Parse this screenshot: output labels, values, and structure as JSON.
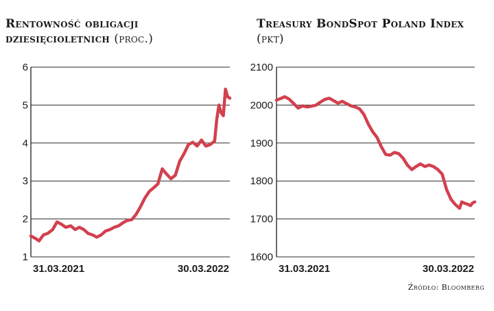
{
  "chart_data": [
    {
      "type": "line",
      "title": "Rentowność obligacji dziesięcioletnich",
      "unit": "(proc.)",
      "ylim": [
        1,
        6
      ],
      "yticks": [
        "1",
        "2",
        "3",
        "4",
        "5",
        "6"
      ],
      "grid": true,
      "x_tick_labels": [
        "31.03.2021",
        "30.03.2022"
      ],
      "color": "#d2414e",
      "series": [
        {
          "x": [
            "2021-03-31",
            "2021-04-09",
            "2021-04-15",
            "2021-04-23",
            "2021-05-01",
            "2021-05-10",
            "2021-05-18",
            "2021-05-26",
            "2021-06-03",
            "2021-06-12",
            "2021-06-20",
            "2021-06-28",
            "2021-07-06",
            "2021-07-14",
            "2021-07-22",
            "2021-07-30",
            "2021-08-07",
            "2021-08-15",
            "2021-08-23",
            "2021-08-31",
            "2021-09-08",
            "2021-09-16",
            "2021-09-24",
            "2021-10-02",
            "2021-10-10",
            "2021-10-18",
            "2021-10-26",
            "2021-11-03",
            "2021-11-11",
            "2021-11-19",
            "2021-11-27",
            "2021-12-05",
            "2021-12-13",
            "2021-12-21",
            "2021-12-29",
            "2022-01-06",
            "2022-01-14",
            "2022-01-22",
            "2022-01-30",
            "2022-02-07",
            "2022-02-15",
            "2022-02-23",
            "2022-03-03",
            "2022-03-07",
            "2022-03-11",
            "2022-03-15",
            "2022-03-19",
            "2022-03-23",
            "2022-03-27",
            "2022-03-31"
          ],
          "values": [
            1.55,
            1.48,
            1.42,
            1.58,
            1.62,
            1.72,
            1.92,
            1.86,
            1.78,
            1.82,
            1.72,
            1.78,
            1.72,
            1.62,
            1.58,
            1.52,
            1.58,
            1.68,
            1.72,
            1.78,
            1.82,
            1.9,
            1.96,
            1.98,
            2.12,
            2.32,
            2.55,
            2.72,
            2.82,
            2.92,
            3.32,
            3.18,
            3.06,
            3.15,
            3.52,
            3.72,
            3.96,
            4.02,
            3.92,
            4.08,
            3.92,
            3.96,
            4.05,
            4.62,
            5.0,
            4.8,
            4.72,
            5.42,
            5.22,
            5.18
          ]
        }
      ]
    },
    {
      "type": "line",
      "title": "Treasury BondSpot Poland Index",
      "unit": "(pkt)",
      "ylim": [
        1600,
        2100
      ],
      "yticks": [
        "1600",
        "1700",
        "1800",
        "1900",
        "2000",
        "2100"
      ],
      "grid": true,
      "x_tick_labels": [
        "31.03.2021",
        "30.03.2022"
      ],
      "color": "#d2414e",
      "series": [
        {
          "x": [
            "2021-03-31",
            "2021-04-09",
            "2021-04-15",
            "2021-04-23",
            "2021-05-01",
            "2021-05-10",
            "2021-05-18",
            "2021-05-26",
            "2021-06-03",
            "2021-06-12",
            "2021-06-20",
            "2021-06-28",
            "2021-07-06",
            "2021-07-14",
            "2021-07-22",
            "2021-07-30",
            "2021-08-07",
            "2021-08-15",
            "2021-08-23",
            "2021-08-31",
            "2021-09-08",
            "2021-09-16",
            "2021-09-24",
            "2021-10-02",
            "2021-10-10",
            "2021-10-18",
            "2021-10-26",
            "2021-11-03",
            "2021-11-11",
            "2021-11-19",
            "2021-11-27",
            "2021-12-05",
            "2021-12-13",
            "2021-12-21",
            "2021-12-29",
            "2022-01-06",
            "2022-01-14",
            "2022-01-22",
            "2022-01-30",
            "2022-02-07",
            "2022-02-15",
            "2022-02-23",
            "2022-03-03",
            "2022-03-07",
            "2022-03-11",
            "2022-03-15",
            "2022-03-19",
            "2022-03-23",
            "2022-03-27",
            "2022-03-31"
          ],
          "values": [
            2013,
            2018,
            2022,
            2016,
            2005,
            1992,
            1998,
            1995,
            1997,
            2000,
            2008,
            2015,
            2018,
            2012,
            2005,
            2010,
            2004,
            1998,
            1995,
            1990,
            1975,
            1950,
            1930,
            1915,
            1890,
            1870,
            1868,
            1875,
            1872,
            1860,
            1842,
            1830,
            1838,
            1845,
            1838,
            1842,
            1838,
            1830,
            1818,
            1778,
            1752,
            1738,
            1728,
            1745,
            1742,
            1740,
            1738,
            1735,
            1742,
            1745
          ]
        }
      ]
    }
  ],
  "source_text": "Źródło: Bloomberg"
}
